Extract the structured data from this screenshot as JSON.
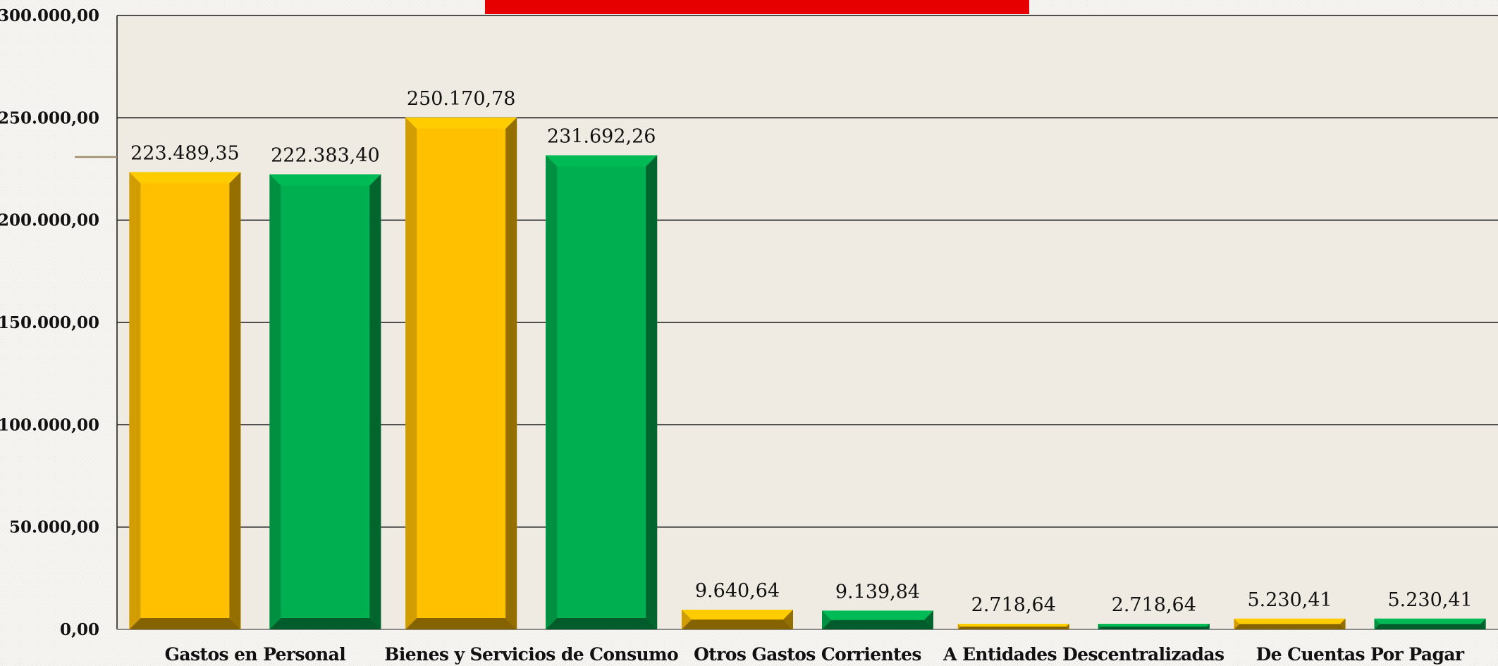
{
  "chart_data": {
    "type": "bar",
    "categories": [
      "Gastos en Personal",
      "Bienes y Servicios de Consumo",
      "Otros Gastos Corrientes",
      "A Entidades Descentralizadas",
      "De Cuentas Por Pagar"
    ],
    "series": [
      {
        "color": "#ffc000",
        "values": [
          223489.35,
          250170.78,
          9640.64,
          2718.64,
          5230.41
        ],
        "labels": [
          "223.489,35",
          "250.170,78",
          "9.640,64",
          "2.718,64",
          "5.230,41"
        ]
      },
      {
        "color": "#00b050",
        "values": [
          222383.4,
          231692.26,
          9139.84,
          2718.64,
          5230.41
        ],
        "labels": [
          "222.383,40",
          "231.692,26",
          "9.139,84",
          "2.718,64",
          "5.230,41"
        ]
      }
    ],
    "ylim": [
      0,
      300000
    ],
    "yticks": [
      0,
      50000,
      100000,
      150000,
      200000,
      250000,
      300000
    ],
    "ytick_labels": [
      "0,00",
      "50.000,00",
      "100.000,00",
      "150.000,00",
      "200.000,00",
      "250.000,00",
      "300.000,00"
    ],
    "grid": true,
    "legend": "none",
    "colors": {
      "plot_background": "#efebe3",
      "gridline": "#1a1a1a",
      "title_bar": "#e60000"
    }
  }
}
